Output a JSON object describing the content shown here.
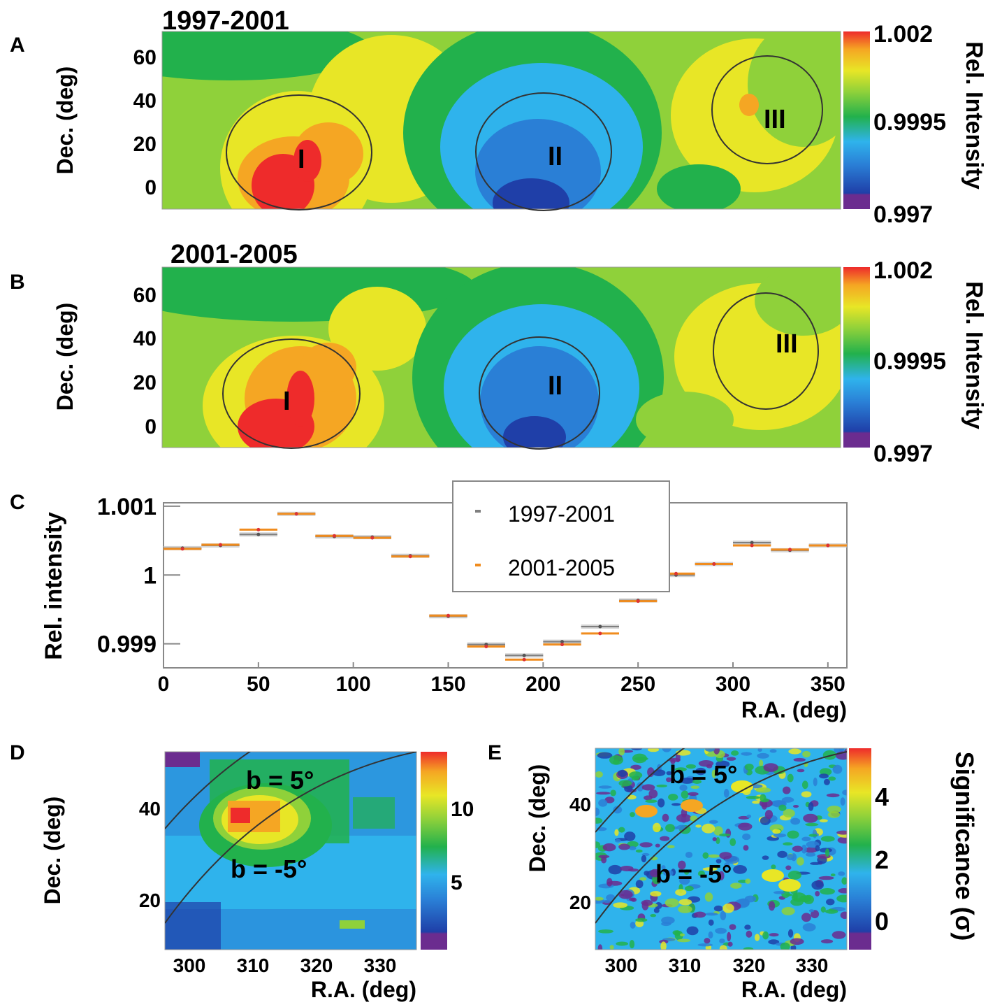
{
  "panels": {
    "A": {
      "letter": "A",
      "title": "1997-2001"
    },
    "B": {
      "letter": "B",
      "title": "2001-2005"
    },
    "C": {
      "letter": "C"
    },
    "D": {
      "letter": "D"
    },
    "E": {
      "letter": "E"
    }
  },
  "colors": {
    "scale": [
      "#6b2c8f",
      "#1f3fa8",
      "#2a7fd6",
      "#2fb3ec",
      "#22b14c",
      "#8fd13a",
      "#e8e626",
      "#f5a623",
      "#ee2b2b"
    ],
    "series_1997": "#7f7f7f",
    "series_2001": "#f08c1e",
    "ellipse": "#333333"
  },
  "chart_data": [
    {
      "type": "heatmap",
      "panel": "A",
      "title": "1997-2001",
      "xlabel": "",
      "ylabel": "Dec. (deg)",
      "xlim": [
        0,
        360
      ],
      "ylim": [
        -10,
        72
      ],
      "yticks": [
        "60",
        "40",
        "20",
        "0"
      ],
      "colorbar": {
        "label": "Rel. Intensity",
        "ticks": [
          "1.002",
          "0.9995",
          "0.997"
        ],
        "range": [
          0.997,
          1.002
        ]
      },
      "regions": [
        {
          "label": "I",
          "ra": 72,
          "dec": 16
        },
        {
          "label": "II",
          "ra": 208,
          "dec": 14
        },
        {
          "label": "III",
          "ra": 325,
          "dec": 36
        }
      ]
    },
    {
      "type": "heatmap",
      "panel": "B",
      "title": "2001-2005",
      "xlabel": "",
      "ylabel": "Dec. (deg)",
      "xlim": [
        0,
        360
      ],
      "ylim": [
        -10,
        72
      ],
      "yticks": [
        "60",
        "40",
        "20",
        "0"
      ],
      "colorbar": {
        "label": "Rel. Intensity",
        "ticks": [
          "1.002",
          "0.9995",
          "0.997"
        ],
        "range": [
          0.997,
          1.002
        ]
      },
      "regions": [
        {
          "label": "I",
          "ra": 68,
          "dec": 14
        },
        {
          "label": "II",
          "ra": 208,
          "dec": 14
        },
        {
          "label": "III",
          "ra": 325,
          "dec": 33
        }
      ]
    },
    {
      "type": "scatter",
      "panel": "C",
      "xlabel": "R.A. (deg)",
      "ylabel": "Rel. intensity",
      "xlim": [
        0,
        360
      ],
      "ylim": [
        0.99865,
        1.00105
      ],
      "xticks": [
        "0",
        "50",
        "100",
        "150",
        "200",
        "250",
        "300",
        "350"
      ],
      "yticks": [
        "1.001",
        "1",
        "0.999"
      ],
      "legend_position": "top-center",
      "series": [
        {
          "name": "1997-2001",
          "x": [
            10,
            30,
            50,
            70,
            90,
            110,
            130,
            150,
            170,
            190,
            210,
            230,
            250,
            270,
            290,
            310,
            330,
            350
          ],
          "y": [
            1.00039,
            1.00043,
            1.00059,
            1.00089,
            1.00056,
            1.00055,
            1.00028,
            0.9994,
            0.99899,
            0.99883,
            0.99903,
            0.99925,
            0.99963,
            1.0,
            1.00016,
            1.00047,
            1.00036,
            1.00043
          ]
        },
        {
          "name": "2001-2005",
          "x": [
            10,
            30,
            50,
            70,
            90,
            110,
            130,
            150,
            170,
            190,
            210,
            230,
            250,
            270,
            290,
            310,
            330,
            350
          ],
          "y": [
            1.00038,
            1.00044,
            1.00066,
            1.00089,
            1.00057,
            1.00054,
            1.00027,
            0.99941,
            0.99896,
            0.99877,
            0.99899,
            0.99915,
            0.99962,
            1.00002,
            1.00016,
            1.00043,
            1.00037,
            1.00043
          ]
        }
      ]
    },
    {
      "type": "heatmap",
      "panel": "D",
      "xlabel": "R.A. (deg)",
      "ylabel": "Dec. (deg)",
      "xlim": [
        296,
        336
      ],
      "ylim": [
        9,
        51
      ],
      "xticks": [
        "300",
        "310",
        "320",
        "330"
      ],
      "yticks": [
        "40",
        "20"
      ],
      "colorbar": {
        "label": "",
        "ticks": [
          "10",
          "5"
        ],
        "range": [
          1,
          14
        ]
      },
      "annotations": [
        "b = 5°",
        "b = -5°"
      ]
    },
    {
      "type": "heatmap",
      "panel": "E",
      "xlabel": "R.A. (deg)",
      "ylabel": "Dec. (deg)",
      "xlim": [
        296,
        336
      ],
      "ylim": [
        9,
        51
      ],
      "xticks": [
        "300",
        "310",
        "320",
        "330"
      ],
      "yticks": [
        "40",
        "20"
      ],
      "colorbar": {
        "label": "Significance (σ)",
        "ticks": [
          "4",
          "2",
          "0"
        ],
        "range": [
          -1,
          5.5
        ]
      },
      "annotations": [
        "b = 5°",
        "b = -5°"
      ]
    }
  ]
}
